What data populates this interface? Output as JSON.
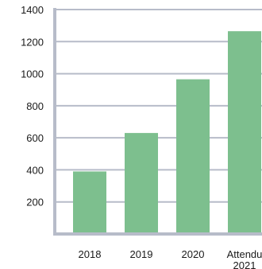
{
  "chart_data": {
    "type": "bar",
    "title": "",
    "xlabel": "",
    "ylabel": "",
    "categories": [
      "2018",
      "2019",
      "2020",
      "2021"
    ],
    "category_label_lines": [
      [
        "2018"
      ],
      [
        "2019"
      ],
      [
        "2020"
      ],
      [
        "Attendu",
        "2021"
      ]
    ],
    "values": [
      390,
      630,
      965,
      1265
    ],
    "yticks": [
      200,
      400,
      600,
      800,
      1000,
      1200,
      1400
    ],
    "ylim": [
      0,
      1400
    ],
    "grid": true,
    "legend": "none",
    "colors": {
      "bar": "#7dbf8e",
      "grid": "#b7bcc9",
      "axis": "#b7bcc9",
      "text": "#1a1a1a"
    }
  }
}
